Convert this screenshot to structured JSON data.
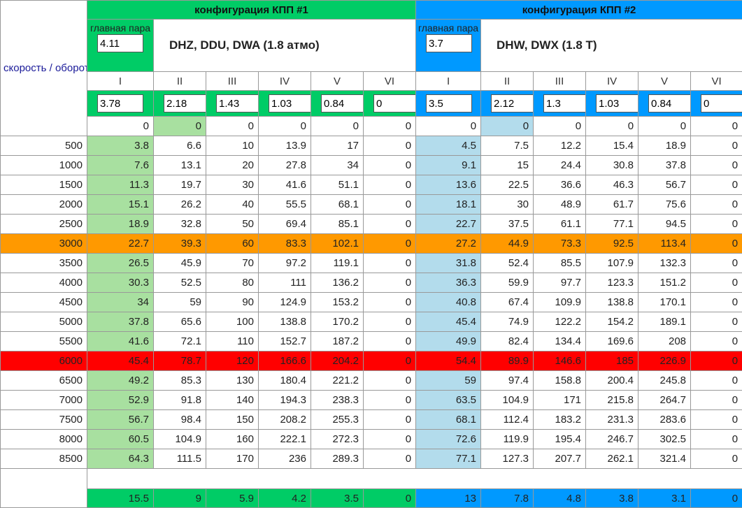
{
  "corner_label": "скорость / обороты",
  "config1": {
    "title": "конфигурация КПП #1",
    "main_pair_label": "главная пара",
    "main_pair_value": "4.11",
    "engines": "DHZ, DDU, DWA (1.8 атмо)",
    "gears": [
      "I",
      "II",
      "III",
      "IV",
      "V",
      "VI"
    ],
    "ratios": [
      "3.78",
      "2.18",
      "1.43",
      "1.03",
      "0.84",
      "0"
    ],
    "colors": {
      "header": "#00cc66",
      "gear1_column": "#a8e0a0"
    }
  },
  "config2": {
    "title": "конфигурация КПП #2",
    "main_pair_label": "главная пара",
    "main_pair_value": "3.7",
    "engines": "DHW, DWX (1.8 T)",
    "gears": [
      "I",
      "II",
      "III",
      "IV",
      "V",
      "VI"
    ],
    "ratios": [
      "3.5",
      "2.12",
      "1.3",
      "1.03",
      "0.84",
      "0"
    ],
    "colors": {
      "header": "#0099ff",
      "gear1_column": "#b3dcec"
    }
  },
  "rows": [
    {
      "rpm": "0",
      "c1": [
        "0",
        "0",
        "0",
        "0",
        "0",
        "0"
      ],
      "c2": [
        "0",
        "0",
        "0",
        "0",
        "0",
        "0"
      ],
      "highlight": ""
    },
    {
      "rpm": "500",
      "c1": [
        "3.8",
        "6.6",
        "10",
        "13.9",
        "17",
        "0"
      ],
      "c2": [
        "4.5",
        "7.5",
        "12.2",
        "15.4",
        "18.9",
        "0"
      ],
      "highlight": ""
    },
    {
      "rpm": "1000",
      "c1": [
        "7.6",
        "13.1",
        "20",
        "27.8",
        "34",
        "0"
      ],
      "c2": [
        "9.1",
        "15",
        "24.4",
        "30.8",
        "37.8",
        "0"
      ],
      "highlight": ""
    },
    {
      "rpm": "1500",
      "c1": [
        "11.3",
        "19.7",
        "30",
        "41.6",
        "51.1",
        "0"
      ],
      "c2": [
        "13.6",
        "22.5",
        "36.6",
        "46.3",
        "56.7",
        "0"
      ],
      "highlight": ""
    },
    {
      "rpm": "2000",
      "c1": [
        "15.1",
        "26.2",
        "40",
        "55.5",
        "68.1",
        "0"
      ],
      "c2": [
        "18.1",
        "30",
        "48.9",
        "61.7",
        "75.6",
        "0"
      ],
      "highlight": ""
    },
    {
      "rpm": "2500",
      "c1": [
        "18.9",
        "32.8",
        "50",
        "69.4",
        "85.1",
        "0"
      ],
      "c2": [
        "22.7",
        "37.5",
        "61.1",
        "77.1",
        "94.5",
        "0"
      ],
      "highlight": ""
    },
    {
      "rpm": "3000",
      "c1": [
        "22.7",
        "39.3",
        "60",
        "83.3",
        "102.1",
        "0"
      ],
      "c2": [
        "27.2",
        "44.9",
        "73.3",
        "92.5",
        "113.4",
        "0"
      ],
      "highlight": "orange"
    },
    {
      "rpm": "3500",
      "c1": [
        "26.5",
        "45.9",
        "70",
        "97.2",
        "119.1",
        "0"
      ],
      "c2": [
        "31.8",
        "52.4",
        "85.5",
        "107.9",
        "132.3",
        "0"
      ],
      "highlight": ""
    },
    {
      "rpm": "4000",
      "c1": [
        "30.3",
        "52.5",
        "80",
        "111",
        "136.2",
        "0"
      ],
      "c2": [
        "36.3",
        "59.9",
        "97.7",
        "123.3",
        "151.2",
        "0"
      ],
      "highlight": ""
    },
    {
      "rpm": "4500",
      "c1": [
        "34",
        "59",
        "90",
        "124.9",
        "153.2",
        "0"
      ],
      "c2": [
        "40.8",
        "67.4",
        "109.9",
        "138.8",
        "170.1",
        "0"
      ],
      "highlight": ""
    },
    {
      "rpm": "5000",
      "c1": [
        "37.8",
        "65.6",
        "100",
        "138.8",
        "170.2",
        "0"
      ],
      "c2": [
        "45.4",
        "74.9",
        "122.2",
        "154.2",
        "189.1",
        "0"
      ],
      "highlight": ""
    },
    {
      "rpm": "5500",
      "c1": [
        "41.6",
        "72.1",
        "110",
        "152.7",
        "187.2",
        "0"
      ],
      "c2": [
        "49.9",
        "82.4",
        "134.4",
        "169.6",
        "208",
        "0"
      ],
      "highlight": ""
    },
    {
      "rpm": "6000",
      "c1": [
        "45.4",
        "78.7",
        "120",
        "166.6",
        "204.2",
        "0"
      ],
      "c2": [
        "54.4",
        "89.9",
        "146.6",
        "185",
        "226.9",
        "0"
      ],
      "highlight": "red"
    },
    {
      "rpm": "6500",
      "c1": [
        "49.2",
        "85.3",
        "130",
        "180.4",
        "221.2",
        "0"
      ],
      "c2": [
        "59",
        "97.4",
        "158.8",
        "200.4",
        "245.8",
        "0"
      ],
      "highlight": ""
    },
    {
      "rpm": "7000",
      "c1": [
        "52.9",
        "91.8",
        "140",
        "194.3",
        "238.3",
        "0"
      ],
      "c2": [
        "63.5",
        "104.9",
        "171",
        "215.8",
        "264.7",
        "0"
      ],
      "highlight": ""
    },
    {
      "rpm": "7500",
      "c1": [
        "56.7",
        "98.4",
        "150",
        "208.2",
        "255.3",
        "0"
      ],
      "c2": [
        "68.1",
        "112.4",
        "183.2",
        "231.3",
        "283.6",
        "0"
      ],
      "highlight": ""
    },
    {
      "rpm": "8000",
      "c1": [
        "60.5",
        "104.9",
        "160",
        "222.1",
        "272.3",
        "0"
      ],
      "c2": [
        "72.6",
        "119.9",
        "195.4",
        "246.7",
        "302.5",
        "0"
      ],
      "highlight": ""
    },
    {
      "rpm": "8500",
      "c1": [
        "64.3",
        "111.5",
        "170",
        "236",
        "289.3",
        "0"
      ],
      "c2": [
        "77.1",
        "127.3",
        "207.7",
        "262.1",
        "321.4",
        "0"
      ],
      "highlight": ""
    }
  ],
  "totals": {
    "c1": [
      "15.5",
      "9",
      "5.9",
      "4.2",
      "3.5",
      "0"
    ],
    "c2": [
      "13",
      "7.8",
      "4.8",
      "3.8",
      "3.1",
      "0"
    ]
  }
}
